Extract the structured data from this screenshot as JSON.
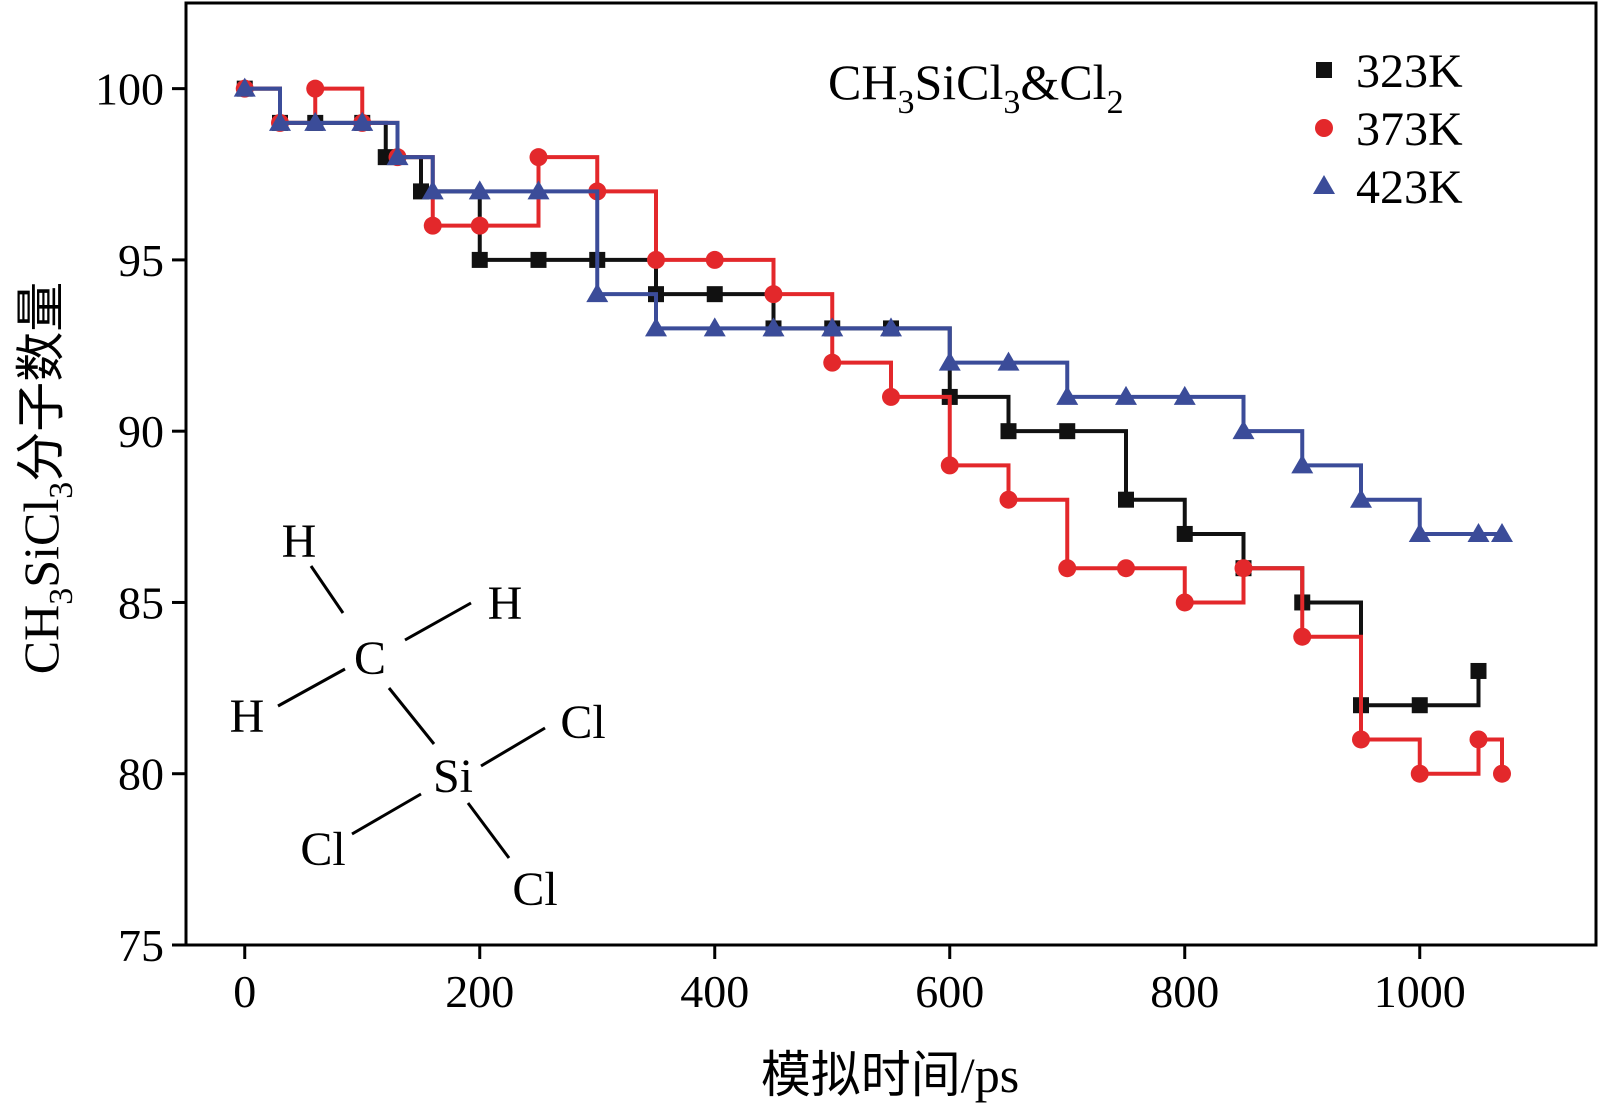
{
  "chart_data": {
    "type": "scatter",
    "annotation": "CH3SiCl3&Cl2",
    "annotation_parts": {
      "base1": "CH",
      "sub1": "3",
      "base2": "SiCl",
      "sub2": "3",
      "base3": "&Cl",
      "sub3": "2"
    },
    "xlabel": "模拟时间/ps",
    "ylabel": "CH3SiCl3分子数量",
    "ylabel_parts": {
      "base1": "CH",
      "sub1": "3",
      "base2": "SiCl",
      "sub2": "3",
      "suffix": "分子数量"
    },
    "xlim": [
      -50,
      1150
    ],
    "ylim": [
      75,
      102.5
    ],
    "xticks": [
      0,
      200,
      400,
      600,
      800,
      1000
    ],
    "yticks": [
      75,
      80,
      85,
      90,
      95,
      100
    ],
    "xtick_labels": [
      "0",
      "200",
      "400",
      "600",
      "800",
      "1000"
    ],
    "ytick_labels": [
      "75",
      "80",
      "85",
      "90",
      "95",
      "100"
    ],
    "grid": false,
    "legend": "top-right",
    "series": [
      {
        "name": "323K",
        "marker": "square",
        "color": "#111111",
        "x": [
          0,
          30,
          60,
          100,
          120,
          150,
          200,
          250,
          300,
          350,
          400,
          450,
          500,
          550,
          600,
          650,
          700,
          750,
          800,
          850,
          900,
          950,
          1000,
          1050
        ],
        "y": [
          100,
          99,
          99,
          99,
          98,
          97,
          95,
          95,
          95,
          94,
          94,
          93,
          93,
          93,
          91,
          90,
          90,
          88,
          87,
          86,
          85,
          82,
          82,
          83
        ]
      },
      {
        "name": "373K",
        "marker": "circle",
        "color": "#e3282b",
        "x": [
          0,
          30,
          60,
          100,
          130,
          160,
          200,
          250,
          300,
          350,
          400,
          450,
          500,
          550,
          600,
          650,
          700,
          750,
          800,
          850,
          900,
          950,
          1000,
          1050,
          1070
        ],
        "y": [
          100,
          99,
          100,
          99,
          98,
          96,
          96,
          98,
          97,
          95,
          95,
          94,
          92,
          91,
          89,
          88,
          86,
          86,
          85,
          86,
          84,
          81,
          80,
          81,
          80
        ]
      },
      {
        "name": "423K",
        "marker": "triangle",
        "color": "#3b4c99",
        "x": [
          0,
          30,
          60,
          100,
          130,
          160,
          200,
          250,
          300,
          350,
          400,
          450,
          500,
          550,
          600,
          650,
          700,
          750,
          800,
          850,
          900,
          950,
          1000,
          1050,
          1070
        ],
        "y": [
          100,
          99,
          99,
          99,
          98,
          97,
          97,
          97,
          94,
          93,
          93,
          93,
          93,
          93,
          92,
          92,
          91,
          91,
          91,
          90,
          89,
          88,
          87,
          87,
          87
        ]
      }
    ]
  },
  "molecule": {
    "labels": [
      "H",
      "H",
      "H",
      "C",
      "Si",
      "Cl",
      "Cl",
      "Cl"
    ]
  }
}
